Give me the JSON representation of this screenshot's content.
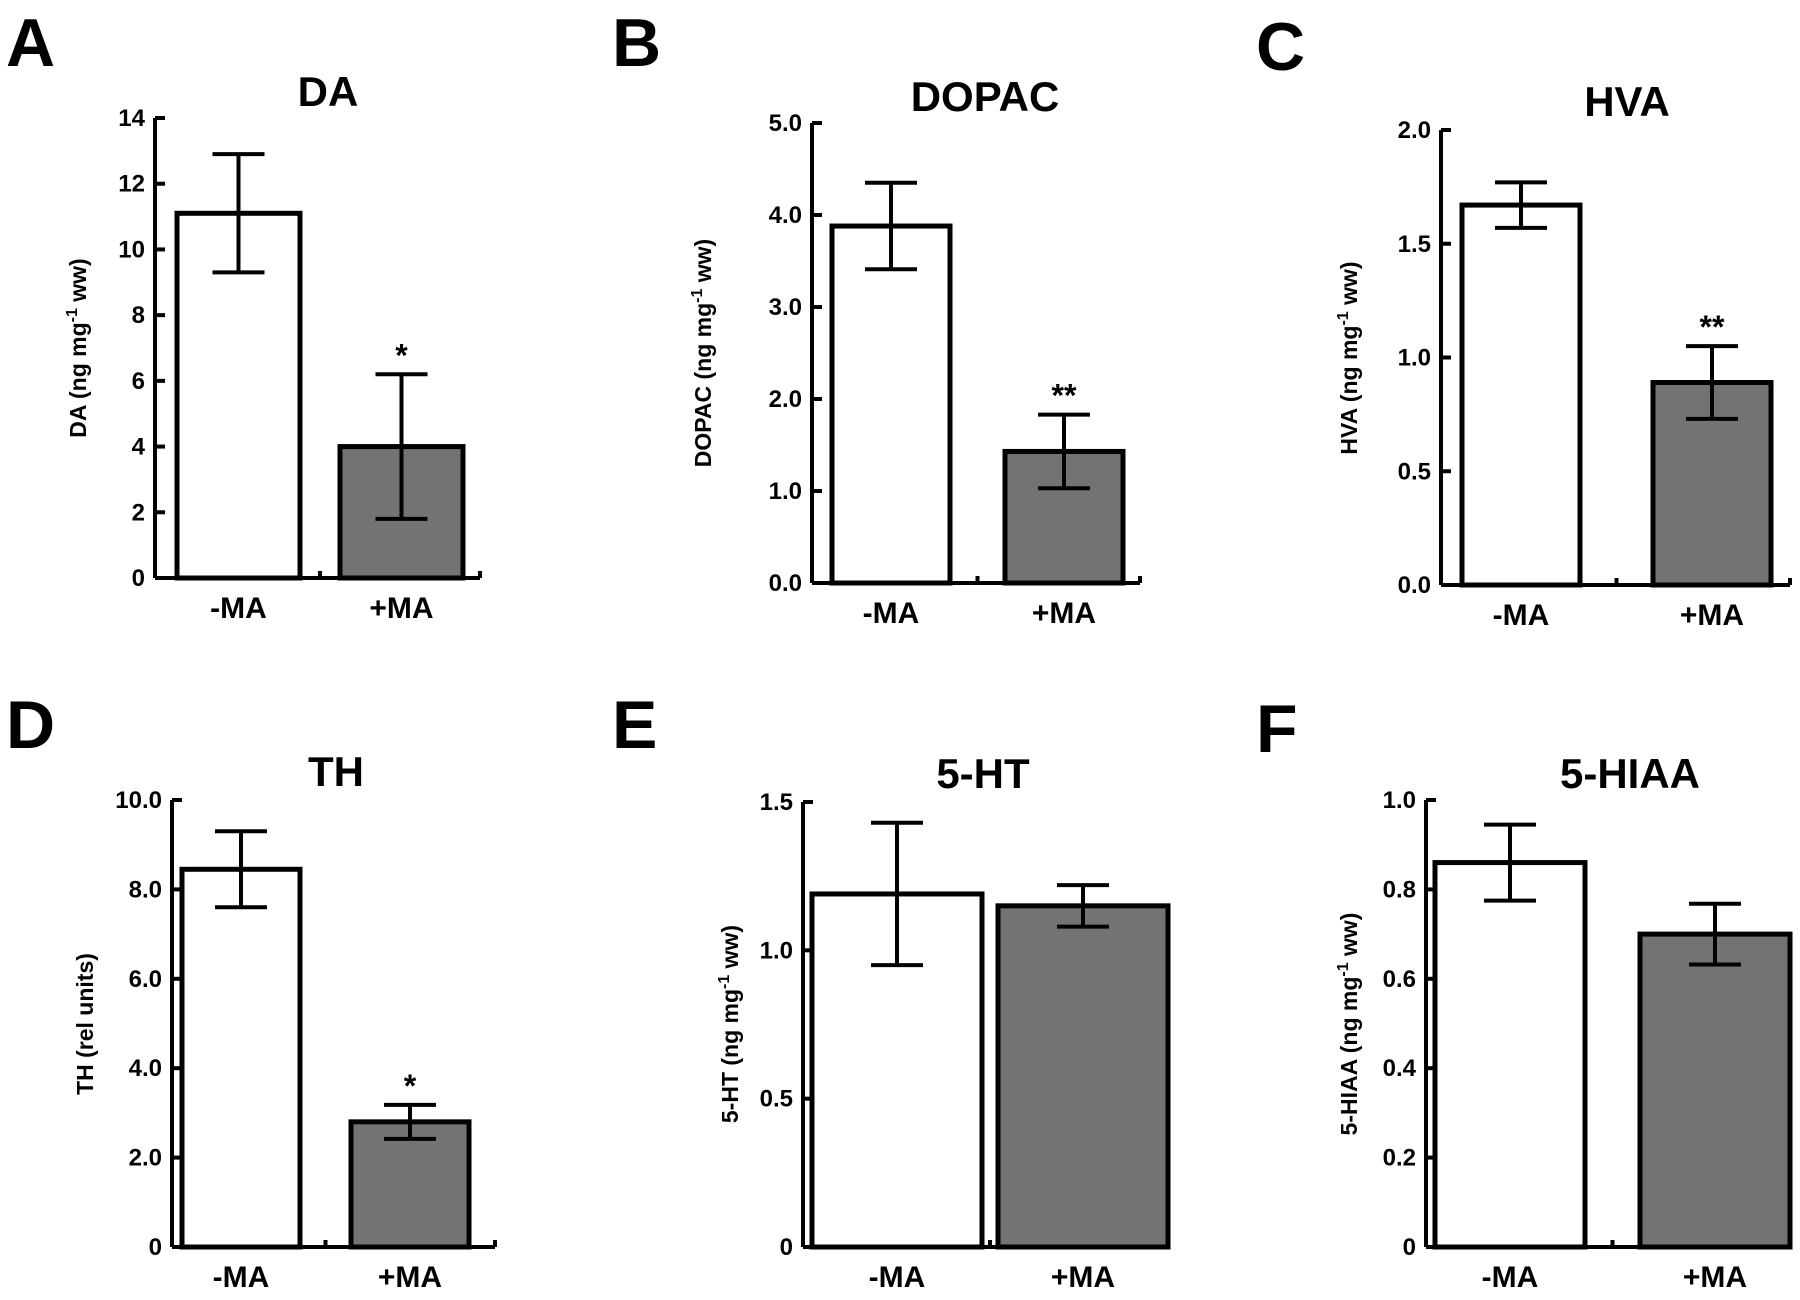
{
  "colors": {
    "minus_ma_fill": "#ffffff",
    "plus_ma_fill": "#737373",
    "stroke": "#000000"
  },
  "chart_data": [
    {
      "panel": "A",
      "type": "bar",
      "title": "DA",
      "ylabel": "DA (ng mg",
      "ylabel_sup": "-1",
      "ylabel_tail": " ww)",
      "ylim": [
        0,
        14
      ],
      "yticks": [
        0,
        2,
        4,
        6,
        8,
        10,
        12,
        14
      ],
      "yticklabels": [
        "0",
        "2",
        "4",
        "6",
        "8",
        "10",
        "12",
        "14"
      ],
      "categories": [
        "-MA",
        "+MA"
      ],
      "values": [
        11.1,
        4.0
      ],
      "errors": [
        1.8,
        2.2
      ],
      "significance": [
        "",
        "*"
      ]
    },
    {
      "panel": "B",
      "type": "bar",
      "title": "DOPAC",
      "ylabel": "DOPAC (ng mg",
      "ylabel_sup": "-1",
      "ylabel_tail": " ww)",
      "ylim": [
        0,
        5
      ],
      "yticks": [
        0,
        1,
        2,
        3,
        4,
        5
      ],
      "yticklabels": [
        "0.0",
        "1.0",
        "2.0",
        "3.0",
        "4.0",
        "5.0"
      ],
      "categories": [
        "-MA",
        "+MA"
      ],
      "values": [
        3.88,
        1.43
      ],
      "errors": [
        0.47,
        0.4
      ],
      "significance": [
        "",
        "**"
      ]
    },
    {
      "panel": "C",
      "type": "bar",
      "title": "HVA",
      "ylabel": "HVA (ng mg",
      "ylabel_sup": "-1",
      "ylabel_tail": " ww)",
      "ylim": [
        0,
        2
      ],
      "yticks": [
        0,
        0.5,
        1,
        1.5,
        2
      ],
      "yticklabels": [
        "0.0",
        "0.5",
        "1.0",
        "1.5",
        "2.0"
      ],
      "categories": [
        "-MA",
        "+MA"
      ],
      "values": [
        1.67,
        0.89
      ],
      "errors": [
        0.1,
        0.16
      ],
      "significance": [
        "",
        "**"
      ]
    },
    {
      "panel": "D",
      "type": "bar",
      "title": "TH",
      "ylabel": "TH (rel units)",
      "ylabel_sup": "",
      "ylabel_tail": "",
      "ylim": [
        0,
        10
      ],
      "yticks": [
        0,
        2,
        4,
        6,
        8,
        10
      ],
      "yticklabels": [
        "0",
        "2.0",
        "4.0",
        "6.0",
        "8.0",
        "10.0"
      ],
      "categories": [
        "-MA",
        "+MA"
      ],
      "values": [
        8.45,
        2.8
      ],
      "errors": [
        0.85,
        0.38
      ],
      "significance": [
        "",
        "*"
      ]
    },
    {
      "panel": "E",
      "type": "bar",
      "title": "5-HT",
      "ylabel": "5-HT (ng mg",
      "ylabel_sup": "-1",
      "ylabel_tail": " ww)",
      "ylim": [
        0,
        1.5
      ],
      "yticks": [
        0,
        0.5,
        1,
        1.5
      ],
      "yticklabels": [
        "0",
        "0.5",
        "1.0",
        "1.5"
      ],
      "categories": [
        "-MA",
        "+MA"
      ],
      "values": [
        1.19,
        1.15
      ],
      "errors": [
        0.24,
        0.07
      ],
      "significance": [
        "",
        ""
      ]
    },
    {
      "panel": "F",
      "type": "bar",
      "title": "5-HIAA",
      "ylabel": "5-HIAA (ng mg",
      "ylabel_sup": "-1",
      "ylabel_tail": " ww)",
      "ylim": [
        0,
        1
      ],
      "yticks": [
        0,
        0.2,
        0.4,
        0.6,
        0.8,
        1
      ],
      "yticklabels": [
        "0",
        "0.2",
        "0.4",
        "0.6",
        "0.8",
        "1.0"
      ],
      "categories": [
        "-MA",
        "+MA"
      ],
      "values": [
        0.86,
        0.7
      ],
      "errors": [
        0.085,
        0.068
      ],
      "significance": [
        "",
        ""
      ]
    }
  ]
}
